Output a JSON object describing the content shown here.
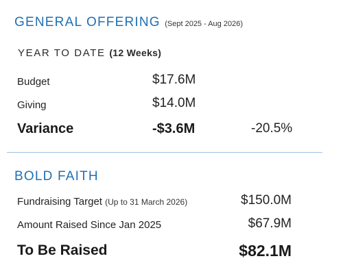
{
  "general_offering": {
    "title": "GENERAL OFFERING",
    "period": "(Sept 2025 - Aug 2026)",
    "ytd_label": "YEAR TO DATE",
    "ytd_weeks": "(12 Weeks)",
    "rows": [
      {
        "label": "Budget",
        "value": "$17.6M"
      },
      {
        "label": "Giving",
        "value": "$14.0M"
      }
    ],
    "variance": {
      "label": "Variance",
      "value": "-$3.6M",
      "percent": "-20.5%"
    }
  },
  "bold_faith": {
    "title": "BOLD FAITH",
    "fundraising_target": {
      "label": "Fundraising Target",
      "note": "(Up to 31 March 2026)",
      "value": "$150.0M"
    },
    "amount_raised": {
      "label": "Amount Raised Since Jan 2025",
      "value": "$67.9M"
    },
    "to_be_raised": {
      "label": "To Be Raised",
      "value": "$82.1M"
    }
  },
  "colors": {
    "accent": "#1f6fb5",
    "divider": "#9cc3e3",
    "text": "#1f1f1f"
  }
}
